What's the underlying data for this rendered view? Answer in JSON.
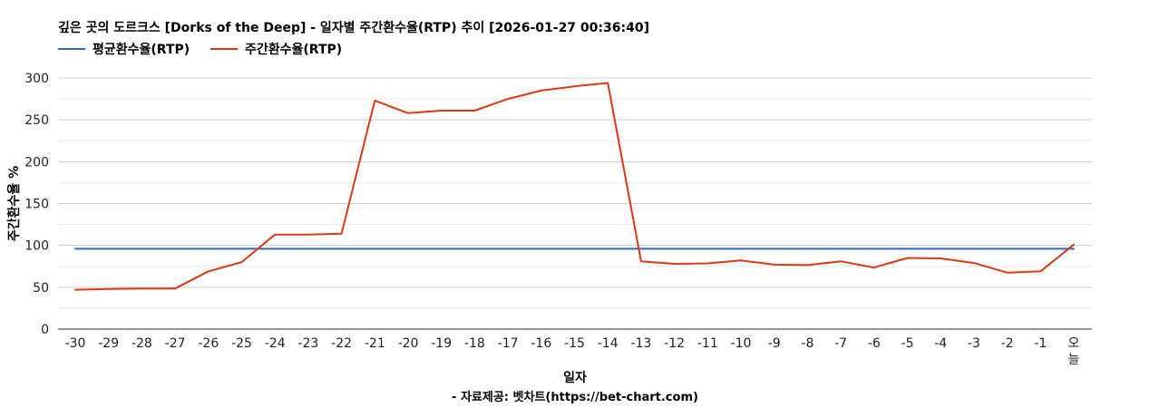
{
  "title": "깊은 곳의 도르크스 [Dorks of the Deep] - 일자별 주간환수율(RTP) 추이 [2026-01-27 00:36:40]",
  "legend": {
    "avg_label": "평균환수율(RTP)",
    "weekly_label": "주간환수율(RTP)"
  },
  "colors": {
    "avg": "#3366cc",
    "weekly": "#dc3912",
    "grid": "#cccccc",
    "minor_grid": "#ebebeb"
  },
  "chart_data": {
    "type": "line",
    "title": "깊은 곳의 도르크스 [Dorks of the Deep] - 일자별 주간환수율(RTP) 추이 [2026-01-27 00:36:40]",
    "xlabel": "일자",
    "ylabel": "주간환수율 %",
    "source": "- 자료제공: 벳차트(https://bet-chart.com)",
    "ylim": [
      0,
      300
    ],
    "yticks": [
      0,
      50,
      100,
      150,
      200,
      250,
      300
    ],
    "grid": true,
    "legend_position": "top-left",
    "categories": [
      "-30",
      "-29",
      "-28",
      "-27",
      "-26",
      "-25",
      "-24",
      "-23",
      "-22",
      "-21",
      "-20",
      "-19",
      "-18",
      "-17",
      "-16",
      "-15",
      "-14",
      "-13",
      "-12",
      "-11",
      "-10",
      "-9",
      "-8",
      "-7",
      "-6",
      "-5",
      "-4",
      "-3",
      "-2",
      "-1",
      "오늘"
    ],
    "series": [
      {
        "name": "평균환수율(RTP)",
        "values": [
          96,
          96,
          96,
          96,
          96,
          96,
          96,
          96,
          96,
          96,
          96,
          96,
          96,
          96,
          96,
          96,
          96,
          96,
          96,
          96,
          96,
          96,
          96,
          96,
          96,
          96,
          96,
          96,
          96,
          96,
          96
        ]
      },
      {
        "name": "주간환수율(RTP)",
        "values": [
          47,
          48,
          48.5,
          48.5,
          69,
          80,
          113,
          113,
          114,
          273,
          258,
          261,
          261,
          275,
          285,
          290,
          294,
          81,
          78,
          78.5,
          82,
          77,
          76.5,
          81,
          73.5,
          85,
          84.5,
          79,
          67.5,
          69,
          101
        ]
      }
    ]
  }
}
